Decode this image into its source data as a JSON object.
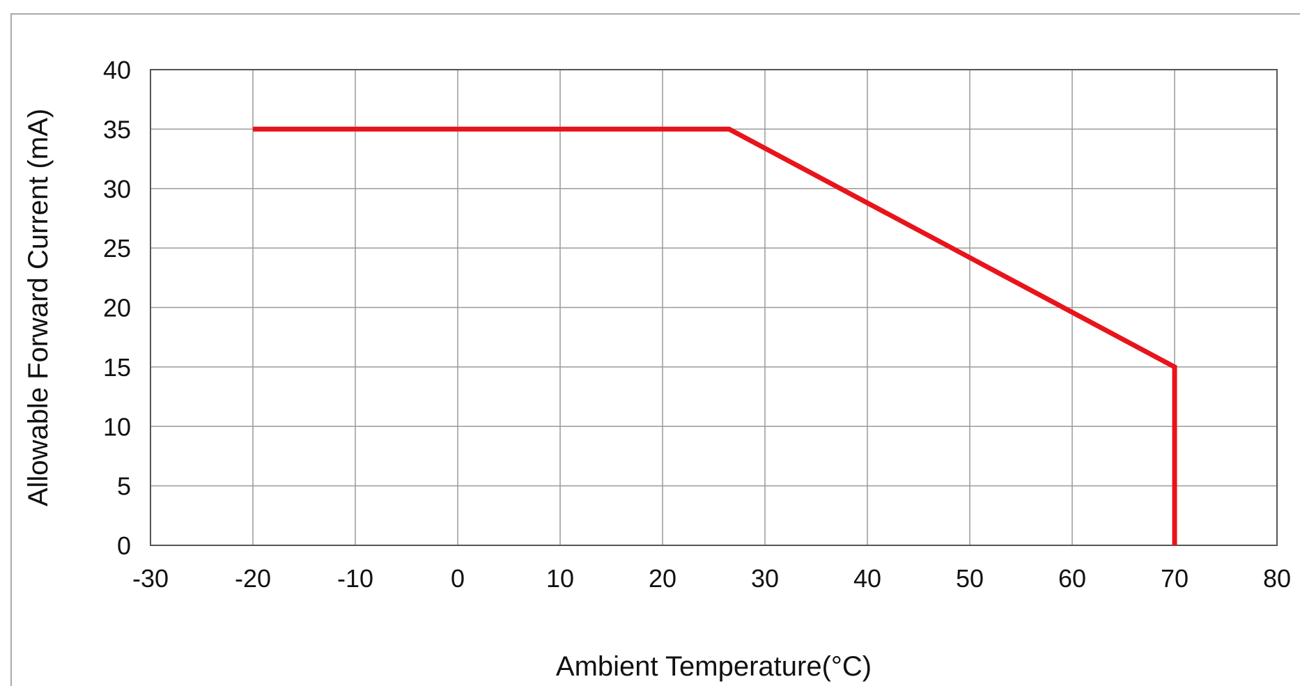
{
  "chart_data": {
    "type": "line",
    "title": "",
    "xlabel": "Ambient Temperature(°C)",
    "ylabel": "Allowable Forward Current (mA)",
    "xlim": [
      -30,
      80
    ],
    "ylim": [
      0,
      40
    ],
    "x_ticks": [
      "-30",
      "-20",
      "-10",
      "0",
      "10",
      "20",
      "30",
      "40",
      "50",
      "60",
      "70",
      "80"
    ],
    "y_ticks": [
      "0",
      "5",
      "10",
      "15",
      "20",
      "25",
      "30",
      "35",
      "40"
    ],
    "grid": true,
    "legend": "none",
    "series": [
      {
        "color": "#e8141b",
        "points": [
          {
            "x": -20,
            "y": 35
          },
          {
            "x": 26.5,
            "y": 35
          },
          {
            "x": 70,
            "y": 15
          },
          {
            "x": 70,
            "y": 0
          }
        ]
      }
    ]
  }
}
